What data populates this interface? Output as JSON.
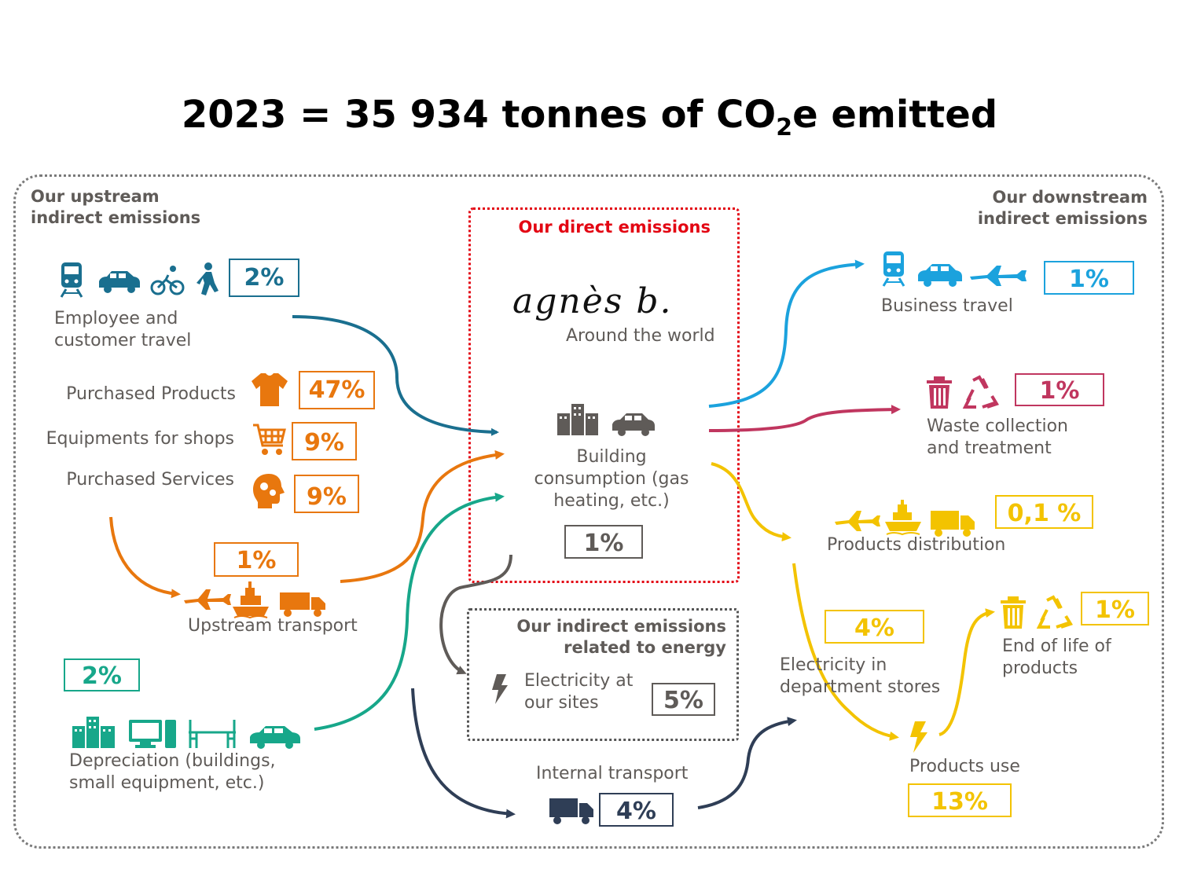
{
  "title": {
    "main": "2023 = 35 934 tonnes of CO",
    "sub": "2",
    "tail": "e emitted"
  },
  "sections": {
    "upstream": [
      "Our upstream",
      "indirect emissions"
    ],
    "downstream": [
      "Our downstream",
      "indirect emissions"
    ],
    "direct": "Our direct emissions",
    "energy": [
      "Our indirect emissions",
      "related to energy"
    ]
  },
  "brand": {
    "signature": "agnès b.",
    "caption": "Around the world"
  },
  "items": {
    "employee_travel": {
      "label": [
        "Employee and",
        "customer travel"
      ],
      "pct": "2%"
    },
    "purchased_products": {
      "label": "Purchased Products",
      "pct": "47%"
    },
    "equipments": {
      "label": "Equipments for shops",
      "pct": "9%"
    },
    "services": {
      "label": "Purchased Services",
      "pct": "9%"
    },
    "upstream_transport": {
      "label": "Upstream transport",
      "pct": "1%"
    },
    "depreciation": {
      "label": [
        "Depreciation (buildings,",
        "small equipment, etc.)"
      ],
      "pct": "2%"
    },
    "building": {
      "label": [
        "Building",
        "consumption (gas",
        "heating, etc.)"
      ],
      "pct": "1%"
    },
    "electricity_sites": {
      "label": [
        "Electricity at",
        "our sites"
      ],
      "pct": "5%"
    },
    "internal_transport": {
      "label": "Internal transport",
      "pct": "4%"
    },
    "business_travel": {
      "label": "Business travel",
      "pct": "1%"
    },
    "waste": {
      "label": [
        "Waste collection",
        "and treatment"
      ],
      "pct": "1%"
    },
    "distribution": {
      "label": "Products distribution",
      "pct": "0,1 %"
    },
    "electricity_stores": {
      "label": [
        "Electricity in",
        "department stores"
      ],
      "pct": "4%"
    },
    "end_of_life": {
      "label": [
        "End of life of",
        "products"
      ],
      "pct": "1%"
    },
    "products_use": {
      "label": "Products use",
      "pct": "13%"
    }
  },
  "colors": {
    "blue": "#1a6f8f",
    "orange": "#e8770e",
    "green": "#17a78a",
    "grey": "#5f5b58",
    "navy": "#2f3e56",
    "sky": "#1ba2dd",
    "magenta": "#c0365f",
    "yellow": "#f3c300",
    "red": "#e30613"
  }
}
